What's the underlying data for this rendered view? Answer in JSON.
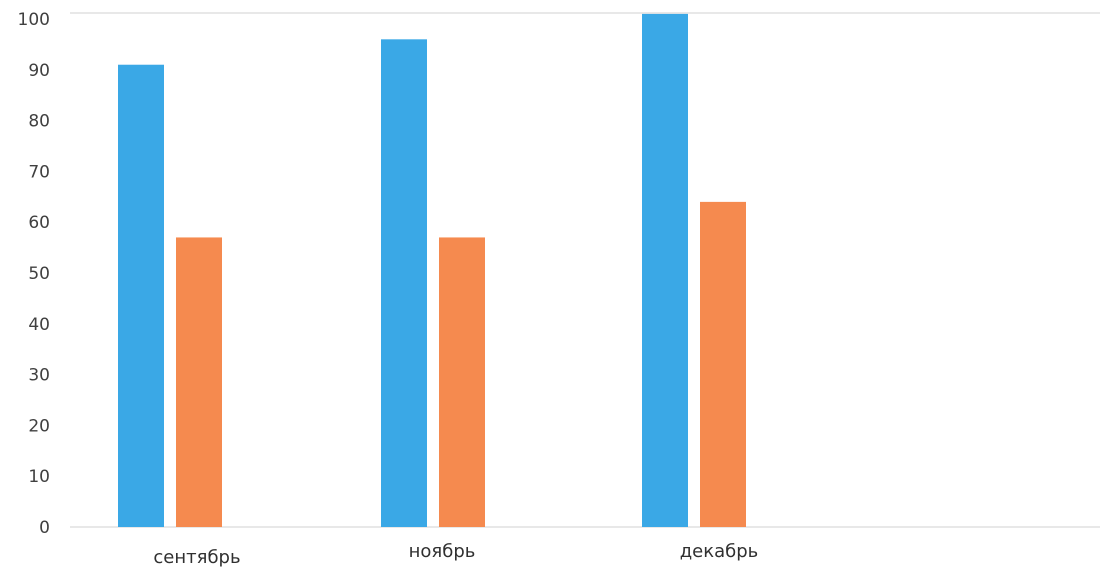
{
  "chart_data": {
    "type": "bar",
    "title": "",
    "xlabel": "",
    "ylabel": "",
    "categories": [
      "сентябрь",
      "ноябрь",
      "декабрь"
    ],
    "series": [
      {
        "color": "#3aa8e6",
        "values": [
          91,
          96,
          101
        ]
      },
      {
        "color": "#f58a4f",
        "values": [
          57,
          57,
          64
        ]
      }
    ],
    "ylim": [
      0,
      100
    ],
    "yticks": [
      0,
      10,
      20,
      30,
      40,
      50,
      60,
      70,
      80,
      90,
      100
    ],
    "grid": false,
    "legend": "none"
  }
}
